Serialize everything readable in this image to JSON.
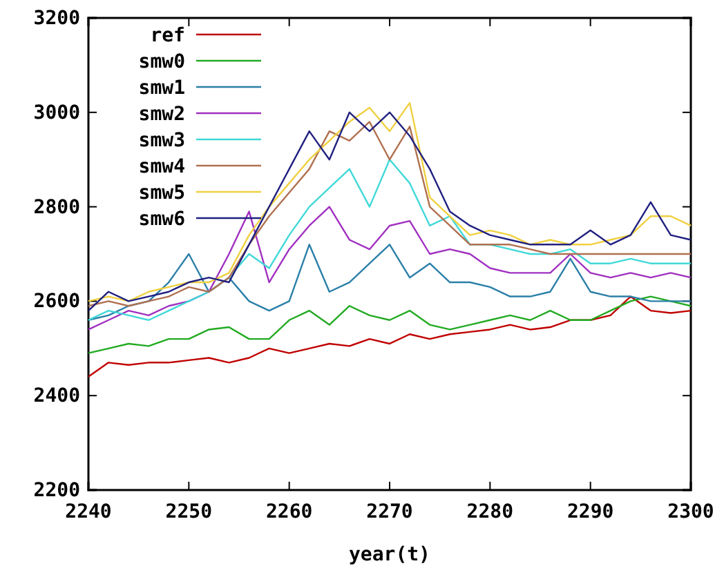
{
  "chart_data": {
    "type": "line",
    "xlabel": "year(t)",
    "x": [
      2240,
      2242,
      2244,
      2246,
      2248,
      2250,
      2252,
      2254,
      2256,
      2258,
      2260,
      2262,
      2264,
      2266,
      2268,
      2270,
      2272,
      2274,
      2276,
      2278,
      2280,
      2282,
      2284,
      2286,
      2288,
      2290,
      2292,
      2294,
      2296,
      2298,
      2300
    ],
    "xlim": [
      2240,
      2300
    ],
    "xticks": [
      2240,
      2250,
      2260,
      2270,
      2280,
      2290,
      2300
    ],
    "ylim": [
      2200,
      3200
    ],
    "yticks": [
      2200,
      2400,
      2600,
      2800,
      3000,
      3200
    ],
    "grid": false,
    "legend": "top left",
    "line_style": "solid",
    "marker": "none",
    "series": [
      {
        "name": "ref",
        "color": "#c00000",
        "values": [
          2440,
          2470,
          2465,
          2470,
          2470,
          2475,
          2480,
          2470,
          2480,
          2500,
          2490,
          2500,
          2510,
          2505,
          2520,
          2510,
          2530,
          2520,
          2530,
          2535,
          2540,
          2550,
          2540,
          2545,
          2560,
          2560,
          2570,
          2610,
          2580,
          2575,
          2580
        ]
      },
      {
        "name": "smw0",
        "color": "#22aa22",
        "values": [
          2490,
          2500,
          2510,
          2505,
          2520,
          2520,
          2540,
          2545,
          2520,
          2520,
          2560,
          2580,
          2550,
          2590,
          2570,
          2560,
          2580,
          2550,
          2540,
          2550,
          2560,
          2570,
          2560,
          2580,
          2560,
          2560,
          2580,
          2600,
          2610,
          2600,
          2590
        ]
      },
      {
        "name": "smw1",
        "color": "#2a7fa8",
        "values": [
          2560,
          2570,
          2590,
          2600,
          2640,
          2700,
          2620,
          2650,
          2600,
          2580,
          2600,
          2720,
          2620,
          2640,
          2680,
          2720,
          2650,
          2680,
          2640,
          2640,
          2630,
          2610,
          2610,
          2620,
          2690,
          2620,
          2610,
          2610,
          2600,
          2600,
          2600
        ]
      },
      {
        "name": "smw2",
        "color": "#a030c0",
        "values": [
          2540,
          2560,
          2580,
          2570,
          2590,
          2600,
          2620,
          2700,
          2790,
          2640,
          2710,
          2760,
          2800,
          2730,
          2710,
          2760,
          2770,
          2700,
          2710,
          2700,
          2670,
          2660,
          2660,
          2660,
          2700,
          2660,
          2650,
          2660,
          2650,
          2660,
          2650
        ]
      },
      {
        "name": "smw3",
        "color": "#40d8d8",
        "values": [
          2560,
          2580,
          2570,
          2560,
          2580,
          2600,
          2620,
          2650,
          2700,
          2670,
          2740,
          2800,
          2840,
          2880,
          2800,
          2900,
          2850,
          2760,
          2780,
          2720,
          2720,
          2710,
          2700,
          2700,
          2710,
          2680,
          2680,
          2690,
          2680,
          2680,
          2680
        ]
      },
      {
        "name": "smw4",
        "color": "#b07050",
        "values": [
          2590,
          2600,
          2590,
          2600,
          2610,
          2630,
          2620,
          2650,
          2720,
          2780,
          2830,
          2880,
          2960,
          2940,
          2980,
          2900,
          2970,
          2800,
          2760,
          2720,
          2720,
          2720,
          2710,
          2700,
          2700,
          2700,
          2700,
          2700,
          2700,
          2700,
          2700
        ]
      },
      {
        "name": "smw5",
        "color": "#f0d040",
        "values": [
          2600,
          2610,
          2600,
          2620,
          2630,
          2640,
          2640,
          2660,
          2740,
          2800,
          2850,
          2900,
          2940,
          2980,
          3010,
          2960,
          3020,
          2820,
          2780,
          2740,
          2750,
          2740,
          2720,
          2730,
          2720,
          2720,
          2730,
          2740,
          2780,
          2780,
          2760
        ]
      },
      {
        "name": "smw6",
        "color": "#202080",
        "values": [
          2580,
          2620,
          2600,
          2610,
          2620,
          2640,
          2650,
          2640,
          2720,
          2800,
          2880,
          2960,
          2900,
          3000,
          2960,
          3000,
          2950,
          2880,
          2790,
          2760,
          2740,
          2730,
          2720,
          2720,
          2720,
          2750,
          2720,
          2740,
          2810,
          2740,
          2730
        ]
      }
    ]
  }
}
